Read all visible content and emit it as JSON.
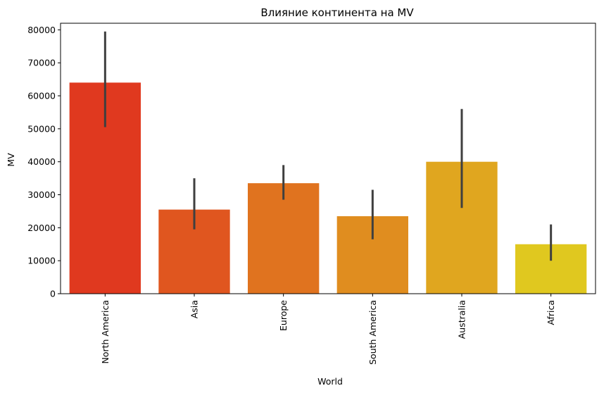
{
  "chart_data": {
    "type": "bar",
    "title": "Влияние континента на MV",
    "xlabel": "World",
    "ylabel": "MV",
    "categories": [
      "North America",
      "Asia",
      "Europe",
      "South America",
      "Australia",
      "Africa"
    ],
    "values": [
      64000,
      25500,
      33500,
      23500,
      40000,
      15000
    ],
    "error_low": [
      50500,
      19500,
      28500,
      16500,
      26000,
      10000
    ],
    "error_high": [
      79500,
      35000,
      39000,
      31500,
      56000,
      21000
    ],
    "colors": [
      "#e0391f",
      "#e0561f",
      "#e0731f",
      "#e08d1f",
      "#e0a61f",
      "#e0c81f"
    ],
    "error_color": "#3f3f3f",
    "ylim": [
      0,
      82000
    ],
    "yticks": [
      0,
      10000,
      20000,
      30000,
      40000,
      50000,
      60000,
      70000,
      80000
    ],
    "ytick_labels": [
      "0",
      "10000",
      "20000",
      "30000",
      "40000",
      "50000",
      "60000",
      "70000",
      "80000"
    ],
    "grid": false,
    "x_tick_rotation": "vertical"
  }
}
